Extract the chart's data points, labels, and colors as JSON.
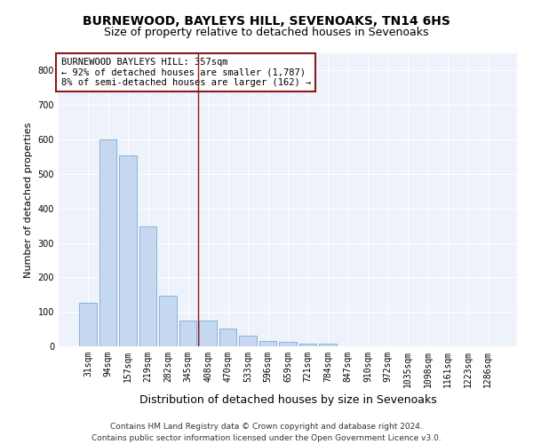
{
  "title1": "BURNEWOOD, BAYLEYS HILL, SEVENOAKS, TN14 6HS",
  "title2": "Size of property relative to detached houses in Sevenoaks",
  "xlabel": "Distribution of detached houses by size in Sevenoaks",
  "ylabel": "Number of detached properties",
  "categories": [
    "31sqm",
    "94sqm",
    "157sqm",
    "219sqm",
    "282sqm",
    "345sqm",
    "408sqm",
    "470sqm",
    "533sqm",
    "596sqm",
    "659sqm",
    "721sqm",
    "784sqm",
    "847sqm",
    "910sqm",
    "972sqm",
    "1035sqm",
    "1098sqm",
    "1161sqm",
    "1223sqm",
    "1286sqm"
  ],
  "values": [
    125,
    600,
    555,
    347,
    148,
    75,
    75,
    52,
    32,
    15,
    13,
    8,
    8,
    0,
    0,
    0,
    0,
    0,
    0,
    0,
    0
  ],
  "bar_color": "#c5d8f0",
  "bar_edge_color": "#7aabda",
  "vline_x": 5.5,
  "vline_color": "#8b1a1a",
  "annotation_text": "BURNEWOOD BAYLEYS HILL: 357sqm\n← 92% of detached houses are smaller (1,787)\n8% of semi-detached houses are larger (162) →",
  "annotation_box_color": "white",
  "annotation_box_edge": "#8b1a1a",
  "ylim": [
    0,
    850
  ],
  "yticks": [
    0,
    100,
    200,
    300,
    400,
    500,
    600,
    700,
    800
  ],
  "footer": "Contains HM Land Registry data © Crown copyright and database right 2024.\nContains public sector information licensed under the Open Government Licence v3.0.",
  "bg_color": "#eef2fb",
  "grid_color": "white",
  "title1_fontsize": 10,
  "title2_fontsize": 9,
  "xlabel_fontsize": 9,
  "ylabel_fontsize": 8,
  "tick_fontsize": 7,
  "annotation_fontsize": 7.5,
  "footer_fontsize": 6.5
}
